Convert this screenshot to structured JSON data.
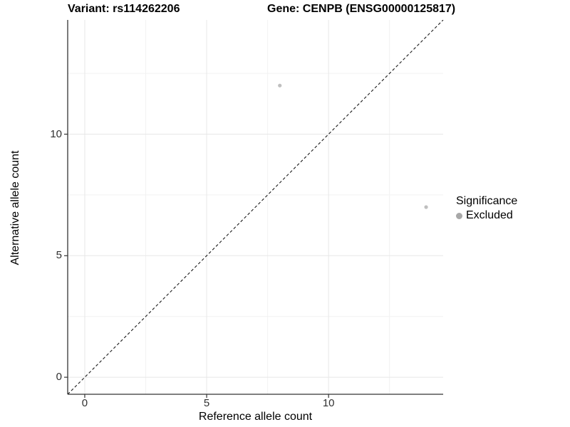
{
  "header": {
    "variant_title": "Variant: rs114262206",
    "gene_title": "Gene: CENPB (ENSG00000125817)"
  },
  "chart_data": {
    "type": "scatter",
    "xlabel": "Reference allele count",
    "ylabel": "Alternative allele count",
    "xlim": [
      -0.7,
      14.7
    ],
    "ylim": [
      -0.7,
      14.7
    ],
    "x_major_ticks": [
      0,
      5,
      10
    ],
    "x_minor_ticks": [
      2.5,
      7.5,
      12.5
    ],
    "y_major_ticks": [
      0,
      5,
      10
    ],
    "y_minor_ticks": [
      2.5,
      7.5,
      12.5
    ],
    "grid": "major and minor gridlines, light grey on white, no top/right border",
    "identity_line": {
      "style": "dashed",
      "from": [
        -0.7,
        -0.7
      ],
      "to": [
        14.7,
        14.7
      ],
      "color": "#1a1a1a"
    },
    "series": [
      {
        "name": "Excluded",
        "color": "#bfbfbf",
        "points": [
          {
            "x": 8,
            "y": 12
          },
          {
            "x": 14,
            "y": 7
          }
        ]
      }
    ],
    "legend": {
      "position": "right",
      "title": "Significance",
      "items": [
        {
          "label": "Excluded",
          "color": "#a8a8a8"
        }
      ]
    }
  },
  "colors": {
    "background": "#ffffff",
    "axis_line": "#333333",
    "tick_mark": "#333333",
    "tick_label": "#303030",
    "grid_major": "#e7e7e7",
    "grid_minor": "#f2f2f2",
    "title_text": "#000000"
  }
}
